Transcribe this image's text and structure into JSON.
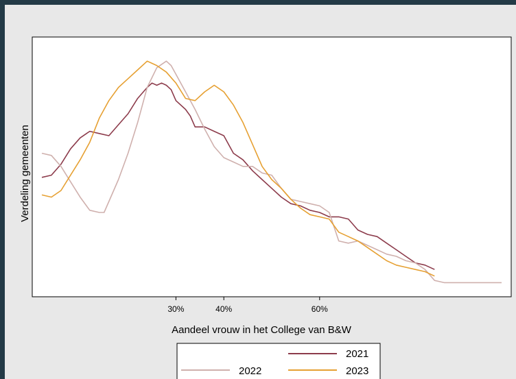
{
  "chart_data": {
    "type": "line",
    "xlabel": "Aandeel vrouw in het College van B&W",
    "ylabel": "Verdeling gemeenten",
    "xlim": [
      0,
      100
    ],
    "ylim": [
      0,
      100
    ],
    "x_ticks": [
      30,
      40,
      60
    ],
    "x_tick_labels": [
      "30%",
      "40%",
      "60%"
    ],
    "y_ticks_shown": false,
    "grid": false,
    "legend_position": "bottom",
    "series": [
      {
        "name": "2021",
        "color": "#8c3b4b",
        "points": [
          [
            2,
            51
          ],
          [
            4,
            52
          ],
          [
            6,
            57
          ],
          [
            8,
            64
          ],
          [
            10,
            69
          ],
          [
            12,
            72
          ],
          [
            14,
            71
          ],
          [
            16,
            70
          ],
          [
            18,
            75
          ],
          [
            20,
            80
          ],
          [
            22,
            87
          ],
          [
            24,
            92
          ],
          [
            25,
            94
          ],
          [
            26,
            93
          ],
          [
            27,
            94
          ],
          [
            28,
            93
          ],
          [
            29,
            91
          ],
          [
            30,
            86
          ],
          [
            32,
            82
          ],
          [
            33,
            79
          ],
          [
            34,
            74
          ],
          [
            36,
            74
          ],
          [
            38,
            72
          ],
          [
            40,
            70
          ],
          [
            42,
            62
          ],
          [
            44,
            59
          ],
          [
            46,
            54
          ],
          [
            48,
            50
          ],
          [
            50,
            46
          ],
          [
            52,
            42
          ],
          [
            54,
            39
          ],
          [
            56,
            38
          ],
          [
            58,
            36
          ],
          [
            60,
            35
          ],
          [
            62,
            33
          ],
          [
            64,
            33
          ],
          [
            66,
            32
          ],
          [
            68,
            27
          ],
          [
            70,
            25
          ],
          [
            72,
            24
          ],
          [
            74,
            21
          ],
          [
            76,
            18
          ],
          [
            78,
            15
          ],
          [
            80,
            12
          ],
          [
            82,
            11
          ],
          [
            84,
            9
          ]
        ]
      },
      {
        "name": "2022",
        "color": "#cfb0ad",
        "points": [
          [
            2,
            62
          ],
          [
            4,
            61
          ],
          [
            6,
            56
          ],
          [
            8,
            49
          ],
          [
            10,
            42
          ],
          [
            12,
            36
          ],
          [
            14,
            35
          ],
          [
            15,
            35
          ],
          [
            16,
            40
          ],
          [
            18,
            50
          ],
          [
            20,
            62
          ],
          [
            22,
            76
          ],
          [
            24,
            92
          ],
          [
            26,
            101
          ],
          [
            28,
            104
          ],
          [
            29,
            102
          ],
          [
            30,
            98
          ],
          [
            32,
            90
          ],
          [
            34,
            82
          ],
          [
            36,
            73
          ],
          [
            38,
            65
          ],
          [
            40,
            60
          ],
          [
            42,
            58
          ],
          [
            44,
            56
          ],
          [
            46,
            56
          ],
          [
            48,
            53
          ],
          [
            50,
            52
          ],
          [
            52,
            46
          ],
          [
            54,
            41
          ],
          [
            56,
            40
          ],
          [
            58,
            39
          ],
          [
            60,
            38
          ],
          [
            62,
            35
          ],
          [
            64,
            22
          ],
          [
            66,
            21
          ],
          [
            68,
            22
          ],
          [
            70,
            20
          ],
          [
            72,
            18
          ],
          [
            74,
            16
          ],
          [
            76,
            15
          ],
          [
            78,
            13
          ],
          [
            80,
            12
          ],
          [
            82,
            9
          ],
          [
            84,
            4
          ],
          [
            86,
            3
          ],
          [
            90,
            3
          ],
          [
            94,
            3
          ],
          [
            98,
            3
          ]
        ]
      },
      {
        "name": "2023",
        "color": "#e6a032",
        "points": [
          [
            2,
            43
          ],
          [
            4,
            42
          ],
          [
            6,
            45
          ],
          [
            8,
            52
          ],
          [
            10,
            59
          ],
          [
            12,
            67
          ],
          [
            14,
            78
          ],
          [
            16,
            86
          ],
          [
            18,
            92
          ],
          [
            20,
            96
          ],
          [
            22,
            100
          ],
          [
            24,
            104
          ],
          [
            25,
            103
          ],
          [
            26,
            102
          ],
          [
            28,
            99
          ],
          [
            30,
            94
          ],
          [
            32,
            87
          ],
          [
            34,
            86
          ],
          [
            36,
            90
          ],
          [
            38,
            93
          ],
          [
            40,
            90
          ],
          [
            42,
            84
          ],
          [
            44,
            76
          ],
          [
            46,
            66
          ],
          [
            48,
            56
          ],
          [
            50,
            50
          ],
          [
            52,
            46
          ],
          [
            54,
            41
          ],
          [
            56,
            37
          ],
          [
            58,
            34
          ],
          [
            60,
            33
          ],
          [
            62,
            32
          ],
          [
            64,
            26
          ],
          [
            66,
            24
          ],
          [
            68,
            22
          ],
          [
            70,
            19
          ],
          [
            72,
            16
          ],
          [
            74,
            13
          ],
          [
            76,
            11
          ],
          [
            78,
            10
          ],
          [
            80,
            9
          ],
          [
            82,
            8
          ],
          [
            84,
            6
          ]
        ]
      }
    ]
  }
}
